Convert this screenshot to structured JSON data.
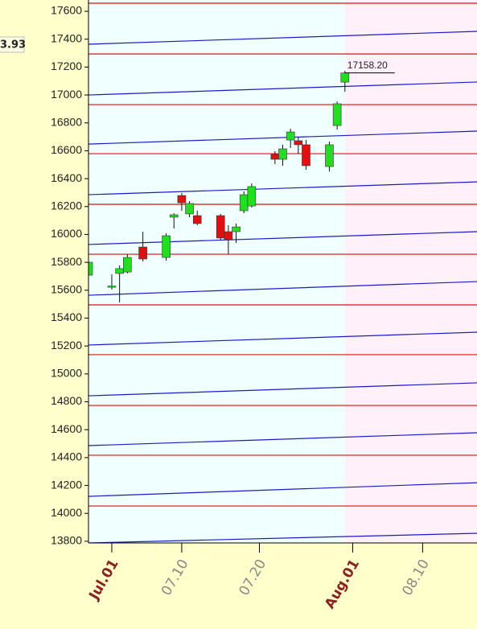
{
  "chart_data": {
    "type": "candlestick",
    "x": [
      "06.28",
      "07.01",
      "07.02",
      "07.03",
      "07.05",
      "07.08",
      "07.09",
      "07.10",
      "07.11",
      "07.12",
      "07.15",
      "07.16",
      "07.17",
      "07.18",
      "07.19",
      "07.22",
      "07.23",
      "07.24",
      "07.25",
      "07.26",
      "07.29",
      "07.30",
      "07.31"
    ],
    "open": [
      15708,
      15625,
      15720,
      15731,
      15910,
      15835,
      16124,
      16279,
      16147,
      16135,
      16135,
      16020,
      16020,
      16170,
      16204,
      16574,
      16539,
      16677,
      16672,
      16643,
      16487,
      16781,
      17092
    ],
    "high": [
      15847,
      15714,
      15778,
      15858,
      16020,
      16008,
      16152,
      16297,
      16239,
      16170,
      16147,
      16066,
      16078,
      16308,
      16366,
      16597,
      16643,
      16758,
      16700,
      16677,
      16666,
      16954,
      17173
    ],
    "low": [
      15691,
      15605,
      15512,
      15720,
      15806,
      15812,
      16043,
      16170,
      16124,
      16066,
      15962,
      15858,
      15939,
      16152,
      16193,
      16504,
      16493,
      16620,
      16579,
      16464,
      16452,
      16752,
      17023
    ],
    "close": [
      15801,
      15630,
      15755,
      15835,
      15824,
      15991,
      16141,
      16227,
      16222,
      16078,
      15974,
      15962,
      16054,
      16285,
      16343,
      16539,
      16614,
      16735,
      16643,
      16493,
      16643,
      16937,
      17158.2
    ],
    "up_color": "#22dd22",
    "down_color": "#dd1111",
    "xlim": [
      "06.28",
      "08.17"
    ],
    "xticks": [
      {
        "value": "07.01",
        "label": "Jul.01"
      },
      {
        "value": "07.10",
        "label": "07.10"
      },
      {
        "value": "07.20",
        "label": "07.20"
      },
      {
        "value": "08.01",
        "label": "Aug.01"
      },
      {
        "value": "08.10",
        "label": "08.10"
      }
    ],
    "ylim": [
      13788,
      17681
    ],
    "yticks": [
      13800,
      14000,
      14200,
      14400,
      14600,
      14800,
      15000,
      15200,
      15400,
      15600,
      15800,
      16000,
      16200,
      16400,
      16600,
      16800,
      17000,
      17200,
      17400,
      17600
    ],
    "red_lines": {
      "color": "#dd1111",
      "values": [
        17658,
        17294,
        16931,
        16579,
        16216,
        15858,
        15495,
        15138,
        14774,
        14417,
        14053
      ]
    },
    "blue_lines": {
      "color": "#1a1acc",
      "start": [
        17364,
        17000,
        16648,
        16285,
        15928,
        15564,
        15207,
        14843,
        14486,
        14122,
        13788
      ],
      "end": [
        17456,
        17093,
        16741,
        16377,
        16020,
        15662,
        15299,
        14936,
        14578,
        14220,
        13857
      ]
    },
    "last_price": {
      "value": 17158.2,
      "label": "17158.20"
    },
    "side_label": "3.93",
    "shade_from": "07.31",
    "plot_color": "#f0ffff",
    "shade_color": "#fff0fa"
  }
}
